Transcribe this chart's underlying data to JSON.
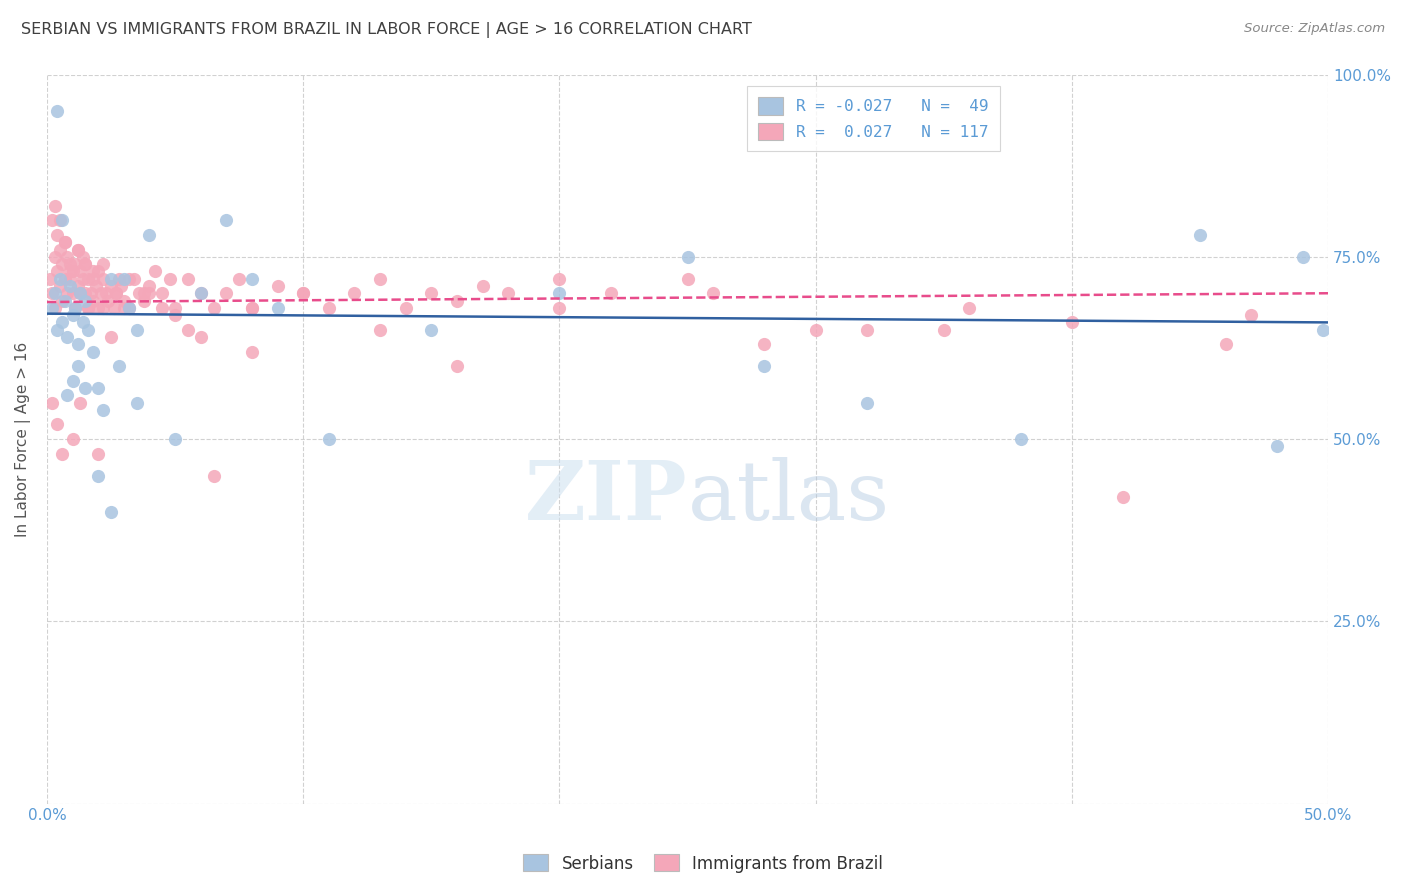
{
  "title": "SERBIAN VS IMMIGRANTS FROM BRAZIL IN LABOR FORCE | AGE > 16 CORRELATION CHART",
  "source": "Source: ZipAtlas.com",
  "ylabel_label": "In Labor Force | Age > 16",
  "xlim": [
    0.0,
    0.5
  ],
  "ylim": [
    0.0,
    1.0
  ],
  "watermark_zip": "ZIP",
  "watermark_atlas": "atlas",
  "legend_blue_label": "Serbians",
  "legend_pink_label": "Immigrants from Brazil",
  "R_blue": -0.027,
  "N_blue": 49,
  "R_pink": 0.027,
  "N_pink": 117,
  "dot_color_blue": "#a8c4e0",
  "dot_color_pink": "#f4a7b9",
  "line_color_blue": "#3060a0",
  "line_color_pink": "#e84c8b",
  "background_color": "#ffffff",
  "grid_color": "#cccccc",
  "axis_color": "#5b9bd5",
  "blue_trend_y0": 0.672,
  "blue_trend_y1": 0.66,
  "pink_trend_y0": 0.688,
  "pink_trend_y1": 0.7,
  "blue_scatter_x": [
    0.002,
    0.003,
    0.004,
    0.005,
    0.006,
    0.007,
    0.008,
    0.009,
    0.01,
    0.011,
    0.012,
    0.013,
    0.014,
    0.015,
    0.016,
    0.018,
    0.02,
    0.022,
    0.025,
    0.028,
    0.03,
    0.032,
    0.035,
    0.04,
    0.05,
    0.06,
    0.07,
    0.08,
    0.09,
    0.11,
    0.15,
    0.2,
    0.28,
    0.32,
    0.38,
    0.45,
    0.48,
    0.49,
    0.498,
    0.004,
    0.006,
    0.008,
    0.01,
    0.012,
    0.015,
    0.02,
    0.025,
    0.035,
    0.25
  ],
  "blue_scatter_y": [
    0.68,
    0.7,
    0.65,
    0.72,
    0.66,
    0.69,
    0.64,
    0.71,
    0.67,
    0.68,
    0.63,
    0.7,
    0.66,
    0.69,
    0.65,
    0.62,
    0.57,
    0.54,
    0.72,
    0.6,
    0.72,
    0.68,
    0.65,
    0.78,
    0.5,
    0.7,
    0.8,
    0.72,
    0.68,
    0.5,
    0.65,
    0.7,
    0.6,
    0.55,
    0.5,
    0.78,
    0.49,
    0.75,
    0.65,
    0.95,
    0.8,
    0.56,
    0.58,
    0.6,
    0.57,
    0.45,
    0.4,
    0.55,
    0.75
  ],
  "pink_scatter_x": [
    0.001,
    0.002,
    0.002,
    0.003,
    0.003,
    0.004,
    0.004,
    0.005,
    0.005,
    0.006,
    0.006,
    0.007,
    0.007,
    0.008,
    0.008,
    0.009,
    0.009,
    0.01,
    0.01,
    0.011,
    0.011,
    0.012,
    0.012,
    0.013,
    0.013,
    0.014,
    0.014,
    0.015,
    0.015,
    0.016,
    0.016,
    0.017,
    0.018,
    0.018,
    0.019,
    0.02,
    0.02,
    0.021,
    0.022,
    0.022,
    0.023,
    0.024,
    0.025,
    0.026,
    0.027,
    0.028,
    0.029,
    0.03,
    0.032,
    0.034,
    0.036,
    0.038,
    0.04,
    0.042,
    0.045,
    0.048,
    0.05,
    0.055,
    0.06,
    0.065,
    0.07,
    0.075,
    0.08,
    0.09,
    0.1,
    0.11,
    0.12,
    0.13,
    0.14,
    0.15,
    0.16,
    0.17,
    0.18,
    0.2,
    0.22,
    0.25,
    0.28,
    0.32,
    0.35,
    0.4,
    0.46,
    0.003,
    0.005,
    0.007,
    0.009,
    0.012,
    0.015,
    0.018,
    0.022,
    0.027,
    0.032,
    0.038,
    0.045,
    0.055,
    0.065,
    0.08,
    0.1,
    0.13,
    0.16,
    0.2,
    0.26,
    0.3,
    0.36,
    0.42,
    0.47,
    0.002,
    0.004,
    0.006,
    0.01,
    0.013,
    0.016,
    0.02,
    0.025,
    0.03,
    0.04,
    0.05,
    0.06,
    0.08
  ],
  "pink_scatter_y": [
    0.72,
    0.7,
    0.8,
    0.68,
    0.75,
    0.73,
    0.78,
    0.71,
    0.76,
    0.69,
    0.74,
    0.72,
    0.77,
    0.7,
    0.75,
    0.74,
    0.72,
    0.73,
    0.7,
    0.68,
    0.74,
    0.71,
    0.76,
    0.7,
    0.73,
    0.72,
    0.75,
    0.7,
    0.74,
    0.68,
    0.72,
    0.7,
    0.69,
    0.73,
    0.71,
    0.73,
    0.68,
    0.7,
    0.72,
    0.68,
    0.7,
    0.69,
    0.71,
    0.68,
    0.7,
    0.72,
    0.71,
    0.69,
    0.68,
    0.72,
    0.7,
    0.69,
    0.71,
    0.73,
    0.7,
    0.72,
    0.68,
    0.72,
    0.7,
    0.68,
    0.7,
    0.72,
    0.68,
    0.71,
    0.7,
    0.68,
    0.7,
    0.72,
    0.68,
    0.7,
    0.69,
    0.71,
    0.7,
    0.68,
    0.7,
    0.72,
    0.63,
    0.65,
    0.65,
    0.66,
    0.63,
    0.82,
    0.8,
    0.77,
    0.73,
    0.76,
    0.74,
    0.72,
    0.74,
    0.7,
    0.72,
    0.7,
    0.68,
    0.65,
    0.45,
    0.68,
    0.7,
    0.65,
    0.6,
    0.72,
    0.7,
    0.65,
    0.68,
    0.42,
    0.67,
    0.55,
    0.52,
    0.48,
    0.5,
    0.55,
    0.68,
    0.48,
    0.64,
    0.68,
    0.7,
    0.67,
    0.64,
    0.62
  ]
}
